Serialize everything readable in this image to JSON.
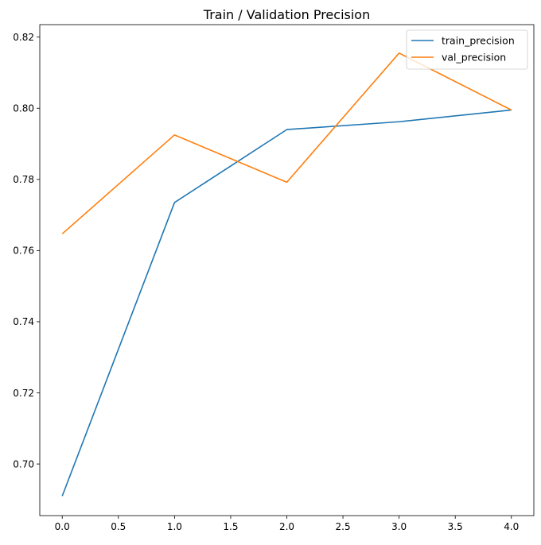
{
  "chart_data": {
    "type": "line",
    "title": "Train / Validation Precision",
    "xlabel": "",
    "ylabel": "",
    "x": [
      0,
      1,
      2,
      3,
      4
    ],
    "xlim": [
      -0.2,
      4.2
    ],
    "ylim": [
      0.6855,
      0.8235
    ],
    "xticks": [
      0.0,
      0.5,
      1.0,
      1.5,
      2.0,
      2.5,
      3.0,
      3.5,
      4.0
    ],
    "xtick_labels": [
      "0.0",
      "0.5",
      "1.0",
      "1.5",
      "2.0",
      "2.5",
      "3.0",
      "3.5",
      "4.0"
    ],
    "yticks": [
      0.7,
      0.72,
      0.74,
      0.76,
      0.78,
      0.8,
      0.82
    ],
    "ytick_labels": [
      "0.70",
      "0.72",
      "0.74",
      "0.76",
      "0.78",
      "0.80",
      "0.82"
    ],
    "grid": false,
    "legend_position": "top-right",
    "series": [
      {
        "name": "train_precision",
        "color": "#1f77b4",
        "values": [
          0.691,
          0.7735,
          0.794,
          0.7962,
          0.7995
        ]
      },
      {
        "name": "val_precision",
        "color": "#ff7f0e",
        "values": [
          0.7647,
          0.7925,
          0.7792,
          0.8155,
          0.7995
        ]
      }
    ]
  }
}
